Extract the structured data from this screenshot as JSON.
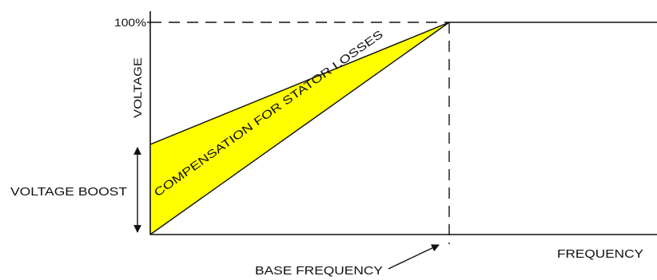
{
  "diagram": {
    "labels": {
      "y_max": "100%",
      "y_axis": "VOLTAGE",
      "x_axis": "FREQUENCY",
      "base_frequency": "BASE FREQUENCY",
      "voltage_boost": "VOLTAGE BOOST",
      "compensation": "COMPENSATION FOR STATOR LOSSES"
    },
    "colors": {
      "compensation_fill": "#ffff00",
      "line": "#111111"
    }
  }
}
